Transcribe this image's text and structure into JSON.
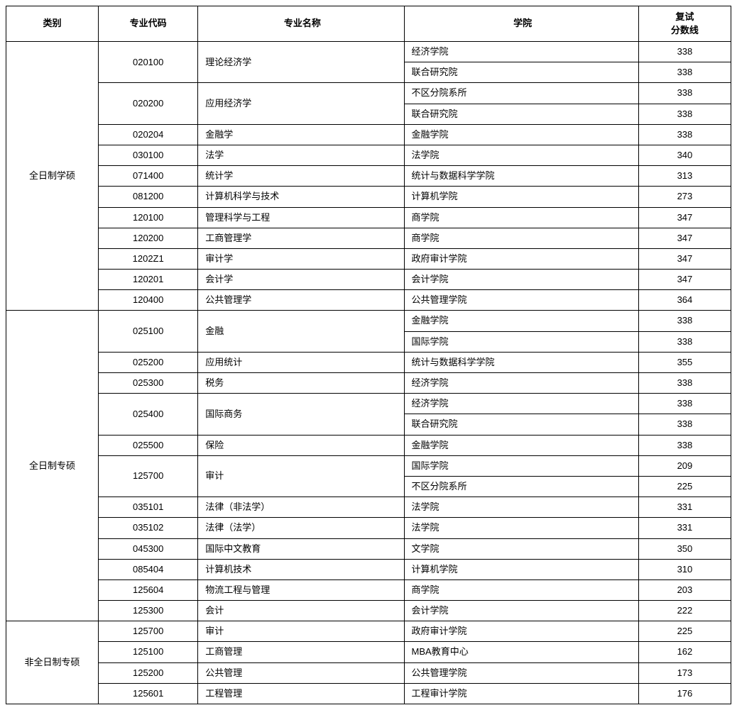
{
  "headers": {
    "category": "类别",
    "code": "专业代码",
    "major": "专业名称",
    "college": "学院",
    "score_l1": "复试",
    "score_l2": "分数线"
  },
  "groups": [
    {
      "category": "全日制学硕",
      "majors": [
        {
          "code": "020100",
          "name": "理论经济学",
          "rows": [
            {
              "college": "经济学院",
              "score": "338"
            },
            {
              "college": "联合研究院",
              "score": "338"
            }
          ]
        },
        {
          "code": "020200",
          "name": "应用经济学",
          "rows": [
            {
              "college": "不区分院系所",
              "score": "338"
            },
            {
              "college": "联合研究院",
              "score": "338"
            }
          ]
        },
        {
          "code": "020204",
          "name": "金融学",
          "rows": [
            {
              "college": "金融学院",
              "score": "338"
            }
          ]
        },
        {
          "code": "030100",
          "name": "法学",
          "rows": [
            {
              "college": "法学院",
              "score": "340"
            }
          ]
        },
        {
          "code": "071400",
          "name": "统计学",
          "rows": [
            {
              "college": "统计与数据科学学院",
              "score": "313"
            }
          ]
        },
        {
          "code": "081200",
          "name": "计算机科学与技术",
          "rows": [
            {
              "college": "计算机学院",
              "score": "273"
            }
          ]
        },
        {
          "code": "120100",
          "name": "管理科学与工程",
          "rows": [
            {
              "college": "商学院",
              "score": "347"
            }
          ]
        },
        {
          "code": "120200",
          "name": "工商管理学",
          "rows": [
            {
              "college": "商学院",
              "score": "347"
            }
          ]
        },
        {
          "code": "1202Z1",
          "name": "审计学",
          "rows": [
            {
              "college": "政府审计学院",
              "score": "347"
            }
          ]
        },
        {
          "code": "120201",
          "name": "会计学",
          "rows": [
            {
              "college": "会计学院",
              "score": "347"
            }
          ]
        },
        {
          "code": "120400",
          "name": "公共管理学",
          "rows": [
            {
              "college": "公共管理学院",
              "score": "364"
            }
          ]
        }
      ]
    },
    {
      "category": "全日制专硕",
      "majors": [
        {
          "code": "025100",
          "name": "金融",
          "rows": [
            {
              "college": "金融学院",
              "score": "338"
            },
            {
              "college": "国际学院",
              "score": "338"
            }
          ]
        },
        {
          "code": "025200",
          "name": "应用统计",
          "rows": [
            {
              "college": "统计与数据科学学院",
              "score": "355"
            }
          ]
        },
        {
          "code": "025300",
          "name": "税务",
          "rows": [
            {
              "college": "经济学院",
              "score": "338"
            }
          ]
        },
        {
          "code": "025400",
          "name": "国际商务",
          "rows": [
            {
              "college": "经济学院",
              "score": "338"
            },
            {
              "college": "联合研究院",
              "score": "338"
            }
          ]
        },
        {
          "code": "025500",
          "name": "保险",
          "rows": [
            {
              "college": "金融学院",
              "score": "338"
            }
          ]
        },
        {
          "code": "125700",
          "name": "审计",
          "rows": [
            {
              "college": "国际学院",
              "score": "209"
            },
            {
              "college": "不区分院系所",
              "score": "225"
            }
          ]
        },
        {
          "code": "035101",
          "name": "法律（非法学）",
          "rows": [
            {
              "college": "法学院",
              "score": "331"
            }
          ]
        },
        {
          "code": "035102",
          "name": "法律（法学）",
          "rows": [
            {
              "college": "法学院",
              "score": "331"
            }
          ]
        },
        {
          "code": "045300",
          "name": "国际中文教育",
          "rows": [
            {
              "college": "文学院",
              "score": "350"
            }
          ]
        },
        {
          "code": "085404",
          "name": "计算机技术",
          "rows": [
            {
              "college": "计算机学院",
              "score": "310"
            }
          ]
        },
        {
          "code": "125604",
          "name": "物流工程与管理",
          "rows": [
            {
              "college": "商学院",
              "score": "203"
            }
          ]
        },
        {
          "code": "125300",
          "name": "会计",
          "rows": [
            {
              "college": "会计学院",
              "score": "222"
            }
          ]
        }
      ]
    },
    {
      "category": "非全日制专硕",
      "majors": [
        {
          "code": "125700",
          "name": "审计",
          "rows": [
            {
              "college": "政府审计学院",
              "score": "225"
            }
          ]
        },
        {
          "code": "125100",
          "name": "工商管理",
          "rows": [
            {
              "college": "MBA教育中心",
              "score": "162"
            }
          ]
        },
        {
          "code": "125200",
          "name": "公共管理",
          "rows": [
            {
              "college": "公共管理学院",
              "score": "173"
            }
          ]
        },
        {
          "code": "125601",
          "name": "工程管理",
          "rows": [
            {
              "college": "工程审计学院",
              "score": "176"
            }
          ]
        }
      ]
    }
  ]
}
